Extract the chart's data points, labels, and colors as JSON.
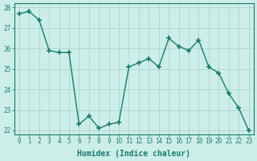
{
  "x": [
    0,
    1,
    2,
    3,
    4,
    5,
    6,
    7,
    8,
    9,
    10,
    11,
    12,
    13,
    14,
    15,
    16,
    17,
    18,
    19,
    20,
    21,
    22,
    23
  ],
  "y": [
    27.7,
    27.8,
    27.4,
    25.9,
    25.8,
    25.8,
    22.3,
    22.7,
    22.1,
    22.3,
    22.4,
    25.1,
    25.3,
    25.5,
    25.1,
    26.5,
    26.1,
    25.9,
    26.4,
    25.1,
    24.8,
    23.8,
    23.1,
    22.0
  ],
  "line_color": "#1a7a6e",
  "marker": "+",
  "marker_size": 4,
  "marker_linewidth": 1.2,
  "bg_color": "#cceee8",
  "grid_color": "#b0d8d0",
  "xlabel": "Humidex (Indice chaleur)",
  "ylim": [
    21.8,
    28.2
  ],
  "xlim": [
    -0.5,
    23.5
  ],
  "yticks": [
    22,
    23,
    24,
    25,
    26,
    27,
    28
  ],
  "xticks": [
    0,
    1,
    2,
    3,
    4,
    5,
    6,
    7,
    8,
    9,
    10,
    11,
    12,
    13,
    14,
    15,
    16,
    17,
    18,
    19,
    20,
    21,
    22,
    23
  ],
  "tick_fontsize": 5.5,
  "xlabel_fontsize": 7,
  "axis_color": "#1a7a6e",
  "tick_color": "#1a7a6e",
  "linewidth": 1.0
}
